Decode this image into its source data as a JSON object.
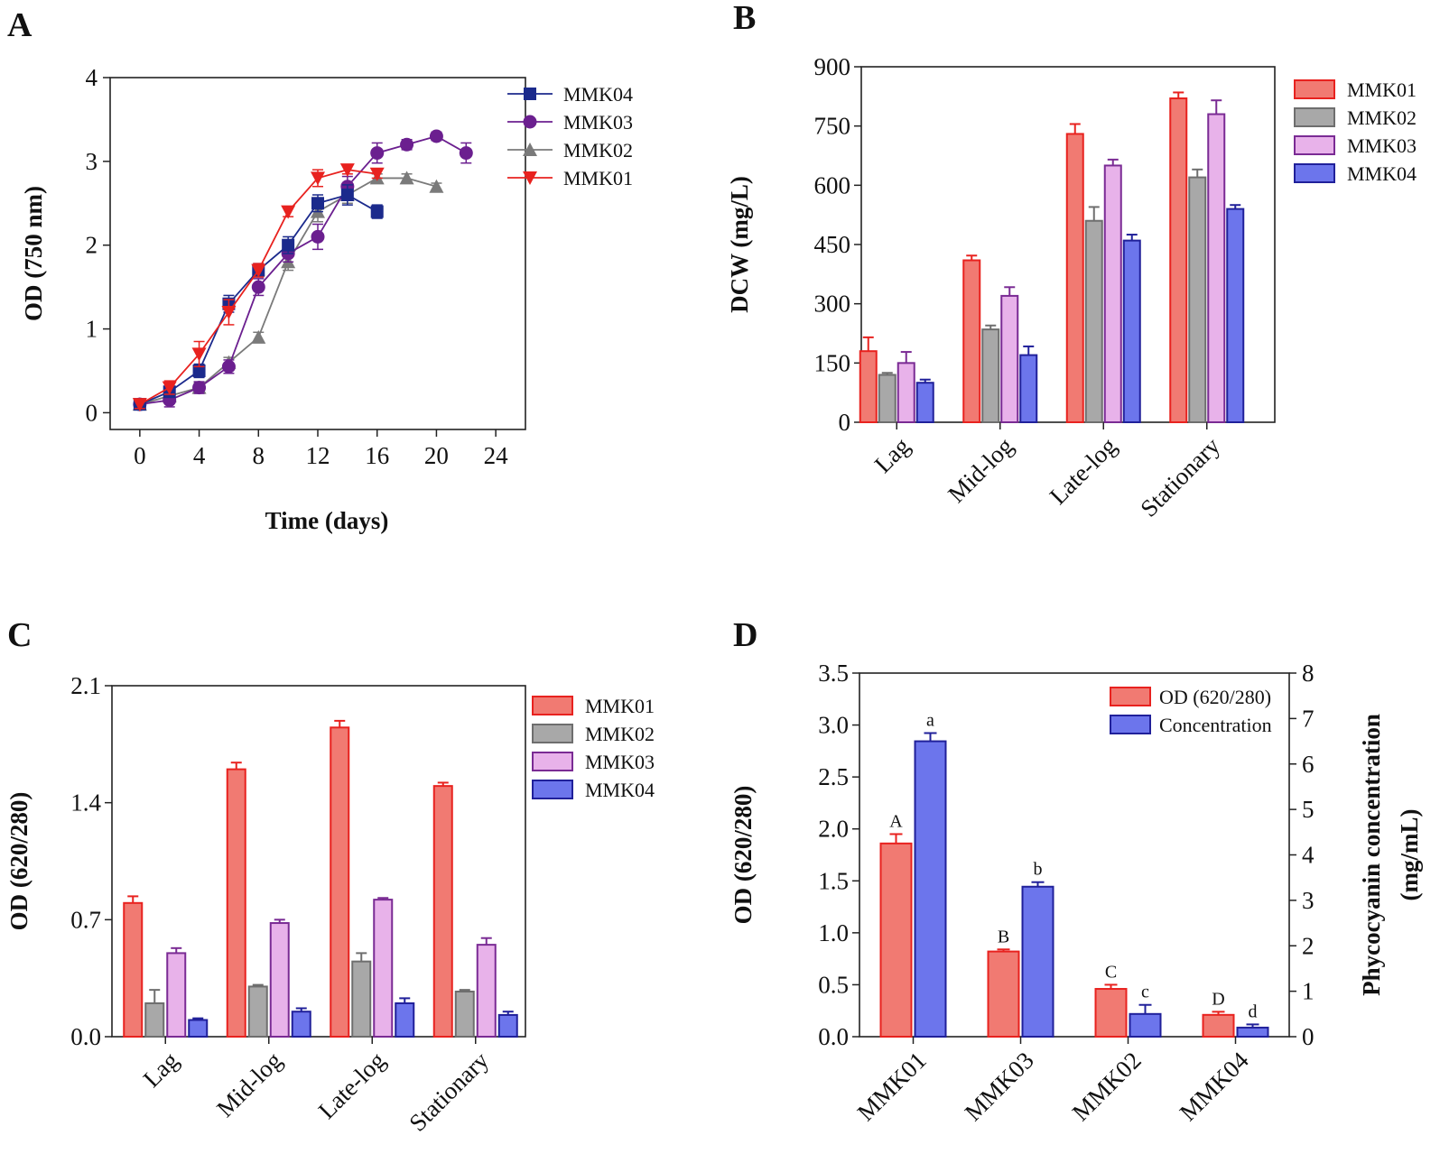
{
  "colors": {
    "MMK01": "#f17a72",
    "MMK01_edge": "#e8221f",
    "MMK02": "#a8a8a8",
    "MMK02_edge": "#6e6e6e",
    "MMK03": "#e8b2ea",
    "MMK03_edge": "#7a2b94",
    "MMK04": "#6c75ec",
    "MMK04_edge": "#20209a",
    "lineA_MMK04": "#1b2a8c",
    "lineA_MMK03": "#6b1f8f",
    "lineA_MMK02": "#7a7a7a",
    "lineA_MMK01": "#e8221f"
  },
  "chart_data": [
    {
      "panel": "A",
      "type": "line",
      "xlabel": "Time (days)",
      "ylabel": "OD (750 nm)",
      "xlim": [
        -2,
        26
      ],
      "ylim": [
        -0.2,
        4
      ],
      "xticks": [
        "0",
        "4",
        "8",
        "12",
        "16",
        "20",
        "24"
      ],
      "yticks": [
        "0",
        "1",
        "2",
        "3",
        "4"
      ],
      "legend": [
        "MMK04",
        "MMK03",
        "MMK02",
        "MMK01"
      ],
      "series": [
        {
          "name": "MMK04",
          "marker": "square",
          "x": [
            0,
            2,
            4,
            6,
            8,
            10,
            12,
            14,
            16
          ],
          "y": [
            0.1,
            0.25,
            0.5,
            1.3,
            1.7,
            2.0,
            2.5,
            2.6,
            2.4
          ],
          "err": [
            0.05,
            0.06,
            0.08,
            0.1,
            0.08,
            0.1,
            0.1,
            0.12,
            0.08
          ]
        },
        {
          "name": "MMK03",
          "marker": "circle",
          "x": [
            0,
            2,
            4,
            6,
            8,
            10,
            12,
            14,
            16,
            18,
            20,
            22
          ],
          "y": [
            0.1,
            0.15,
            0.3,
            0.55,
            1.5,
            1.9,
            2.1,
            2.7,
            3.1,
            3.2,
            3.3,
            3.1
          ],
          "err": [
            0.05,
            0.08,
            0.07,
            0.08,
            0.1,
            0.1,
            0.15,
            0.12,
            0.12,
            0.06,
            0.05,
            0.12
          ]
        },
        {
          "name": "MMK02",
          "marker": "triangle-up",
          "x": [
            0,
            2,
            4,
            6,
            8,
            10,
            12,
            14,
            16,
            18,
            20
          ],
          "y": [
            0.1,
            0.2,
            0.3,
            0.6,
            0.9,
            1.8,
            2.4,
            2.6,
            2.8,
            2.8,
            2.7
          ],
          "err": [
            0.05,
            0.05,
            0.06,
            0.06,
            0.06,
            0.1,
            0.12,
            0.1,
            0.05,
            0.05,
            0.04
          ]
        },
        {
          "name": "MMK01",
          "marker": "triangle-down",
          "x": [
            0,
            2,
            4,
            6,
            8,
            10,
            12,
            14,
            16
          ],
          "y": [
            0.1,
            0.3,
            0.7,
            1.2,
            1.7,
            2.4,
            2.8,
            2.9,
            2.85
          ],
          "err": [
            0.05,
            0.08,
            0.15,
            0.15,
            0.08,
            0.06,
            0.1,
            0.05,
            0.05
          ]
        }
      ]
    },
    {
      "panel": "B",
      "type": "bar",
      "ylabel": "DCW (mg/L)",
      "xlabel": "",
      "ylim": [
        0,
        900
      ],
      "yticks": [
        "0",
        "150",
        "300",
        "450",
        "600",
        "750",
        "900"
      ],
      "categories": [
        "Lag",
        "Mid-log",
        "Late-log",
        "Stationary"
      ],
      "legend_order": [
        "MMK01",
        "MMK02",
        "MMK03",
        "MMK04"
      ],
      "series": [
        {
          "name": "MMK01",
          "values": [
            180,
            410,
            730,
            820
          ],
          "err": [
            35,
            12,
            25,
            15
          ]
        },
        {
          "name": "MMK02",
          "values": [
            120,
            235,
            510,
            620
          ],
          "err": [
            5,
            10,
            35,
            20
          ]
        },
        {
          "name": "MMK03",
          "values": [
            150,
            320,
            650,
            780
          ],
          "err": [
            28,
            22,
            15,
            35
          ]
        },
        {
          "name": "MMK04",
          "values": [
            100,
            170,
            460,
            540
          ],
          "err": [
            8,
            22,
            15,
            10
          ]
        }
      ]
    },
    {
      "panel": "C",
      "type": "bar",
      "ylabel": "OD (620/280)",
      "xlabel": "",
      "ylim": [
        0,
        2.1
      ],
      "yticks": [
        "0.0",
        "0.7",
        "1.4",
        "2.1"
      ],
      "categories": [
        "Lag",
        "Mid-log",
        "Late-log",
        "Stationary"
      ],
      "legend_order": [
        "MMK01",
        "MMK02",
        "MMK03",
        "MMK04"
      ],
      "series": [
        {
          "name": "MMK01",
          "values": [
            0.8,
            1.6,
            1.85,
            1.5
          ],
          "err": [
            0.04,
            0.04,
            0.04,
            0.02
          ]
        },
        {
          "name": "MMK02",
          "values": [
            0.2,
            0.3,
            0.45,
            0.27
          ],
          "err": [
            0.08,
            0.01,
            0.05,
            0.01
          ]
        },
        {
          "name": "MMK03",
          "values": [
            0.5,
            0.68,
            0.82,
            0.55
          ],
          "err": [
            0.03,
            0.02,
            0.01,
            0.04
          ]
        },
        {
          "name": "MMK04",
          "values": [
            0.1,
            0.15,
            0.2,
            0.13
          ],
          "err": [
            0.01,
            0.02,
            0.03,
            0.02
          ]
        }
      ]
    },
    {
      "panel": "D",
      "type": "bar",
      "ylabel": "OD (620/280)",
      "y2label": "Phycocyanin concentration (mg/mL)",
      "ylabel2_line1": "Phycocyanin concentration",
      "ylabel2_line2": "(mg/mL)",
      "xlabel": "",
      "ylim": [
        0,
        3.5
      ],
      "y2lim": [
        0,
        8
      ],
      "yticks": [
        "0.0",
        "0.5",
        "1.0",
        "1.5",
        "2.0",
        "2.5",
        "3.0",
        "3.5"
      ],
      "y2ticks": [
        "0",
        "1",
        "2",
        "3",
        "4",
        "5",
        "6",
        "7",
        "8"
      ],
      "categories": [
        "MMK01",
        "MMK03",
        "MMK02",
        "MMK04"
      ],
      "legend": [
        "OD (620/280)",
        "Concentration"
      ],
      "series": [
        {
          "name": "OD (620/280)",
          "axis": "left",
          "values": [
            1.86,
            0.82,
            0.46,
            0.21
          ],
          "err": [
            0.09,
            0.02,
            0.04,
            0.03
          ],
          "letters": [
            "A",
            "B",
            "C",
            "D"
          ]
        },
        {
          "name": "Concentration",
          "axis": "right",
          "values": [
            6.5,
            3.3,
            0.5,
            0.2
          ],
          "err": [
            0.18,
            0.1,
            0.2,
            0.07
          ],
          "letters": [
            "a",
            "b",
            "c",
            "d"
          ]
        }
      ]
    }
  ]
}
